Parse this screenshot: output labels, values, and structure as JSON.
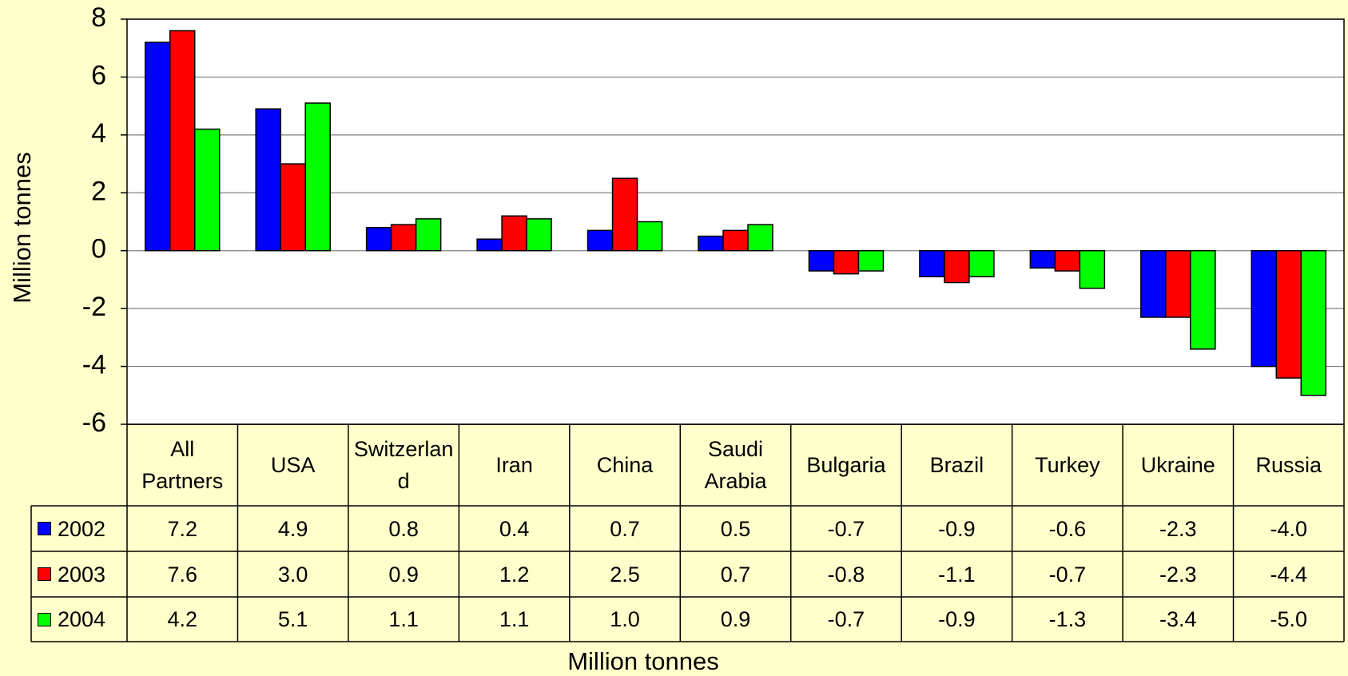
{
  "chart_data": {
    "type": "bar",
    "y_label": "Million tonnes",
    "x_label": "Million tonnes",
    "categories": [
      "All Partners",
      "USA",
      "Switzerland",
      "Iran",
      "China",
      "Saudi Arabia",
      "Bulgaria",
      "Brazil",
      "Turkey",
      "Ukraine",
      "Russia"
    ],
    "series": [
      {
        "name": "2002",
        "color": "#0000ff",
        "values": [
          7.2,
          4.9,
          0.8,
          0.4,
          0.7,
          0.5,
          -0.7,
          -0.9,
          -0.6,
          -2.3,
          -4.0
        ],
        "value_labels": [
          "7.2",
          "4.9",
          "0.8",
          "0.4",
          "0.7",
          "0.5",
          "-0.7",
          "-0.9",
          "-0.6",
          "-2.3",
          "-4.0"
        ]
      },
      {
        "name": "2003",
        "color": "#ff0000",
        "values": [
          7.6,
          3.0,
          0.9,
          1.2,
          2.5,
          0.7,
          -0.8,
          -1.1,
          -0.7,
          -2.3,
          -4.4
        ],
        "value_labels": [
          "7.6",
          "3.0",
          "0.9",
          "1.2",
          "2.5",
          "0.7",
          "-0.8",
          "-1.1",
          "-0.7",
          "-2.3",
          "-4.4"
        ]
      },
      {
        "name": "2004",
        "color": "#00ff00",
        "values": [
          4.2,
          5.1,
          1.1,
          1.1,
          1.0,
          0.9,
          -0.7,
          -0.9,
          -1.3,
          -3.4,
          -5.0
        ],
        "value_labels": [
          "4.2",
          "5.1",
          "1.1",
          "1.1",
          "1.0",
          "0.9",
          "-0.7",
          "-0.9",
          "-1.3",
          "-3.4",
          "-5.0"
        ]
      }
    ],
    "ylim": [
      -6,
      8
    ],
    "yticks": [
      -6,
      -4,
      -2,
      0,
      2,
      4,
      6,
      8
    ],
    "grid": true,
    "data_table": true
  }
}
